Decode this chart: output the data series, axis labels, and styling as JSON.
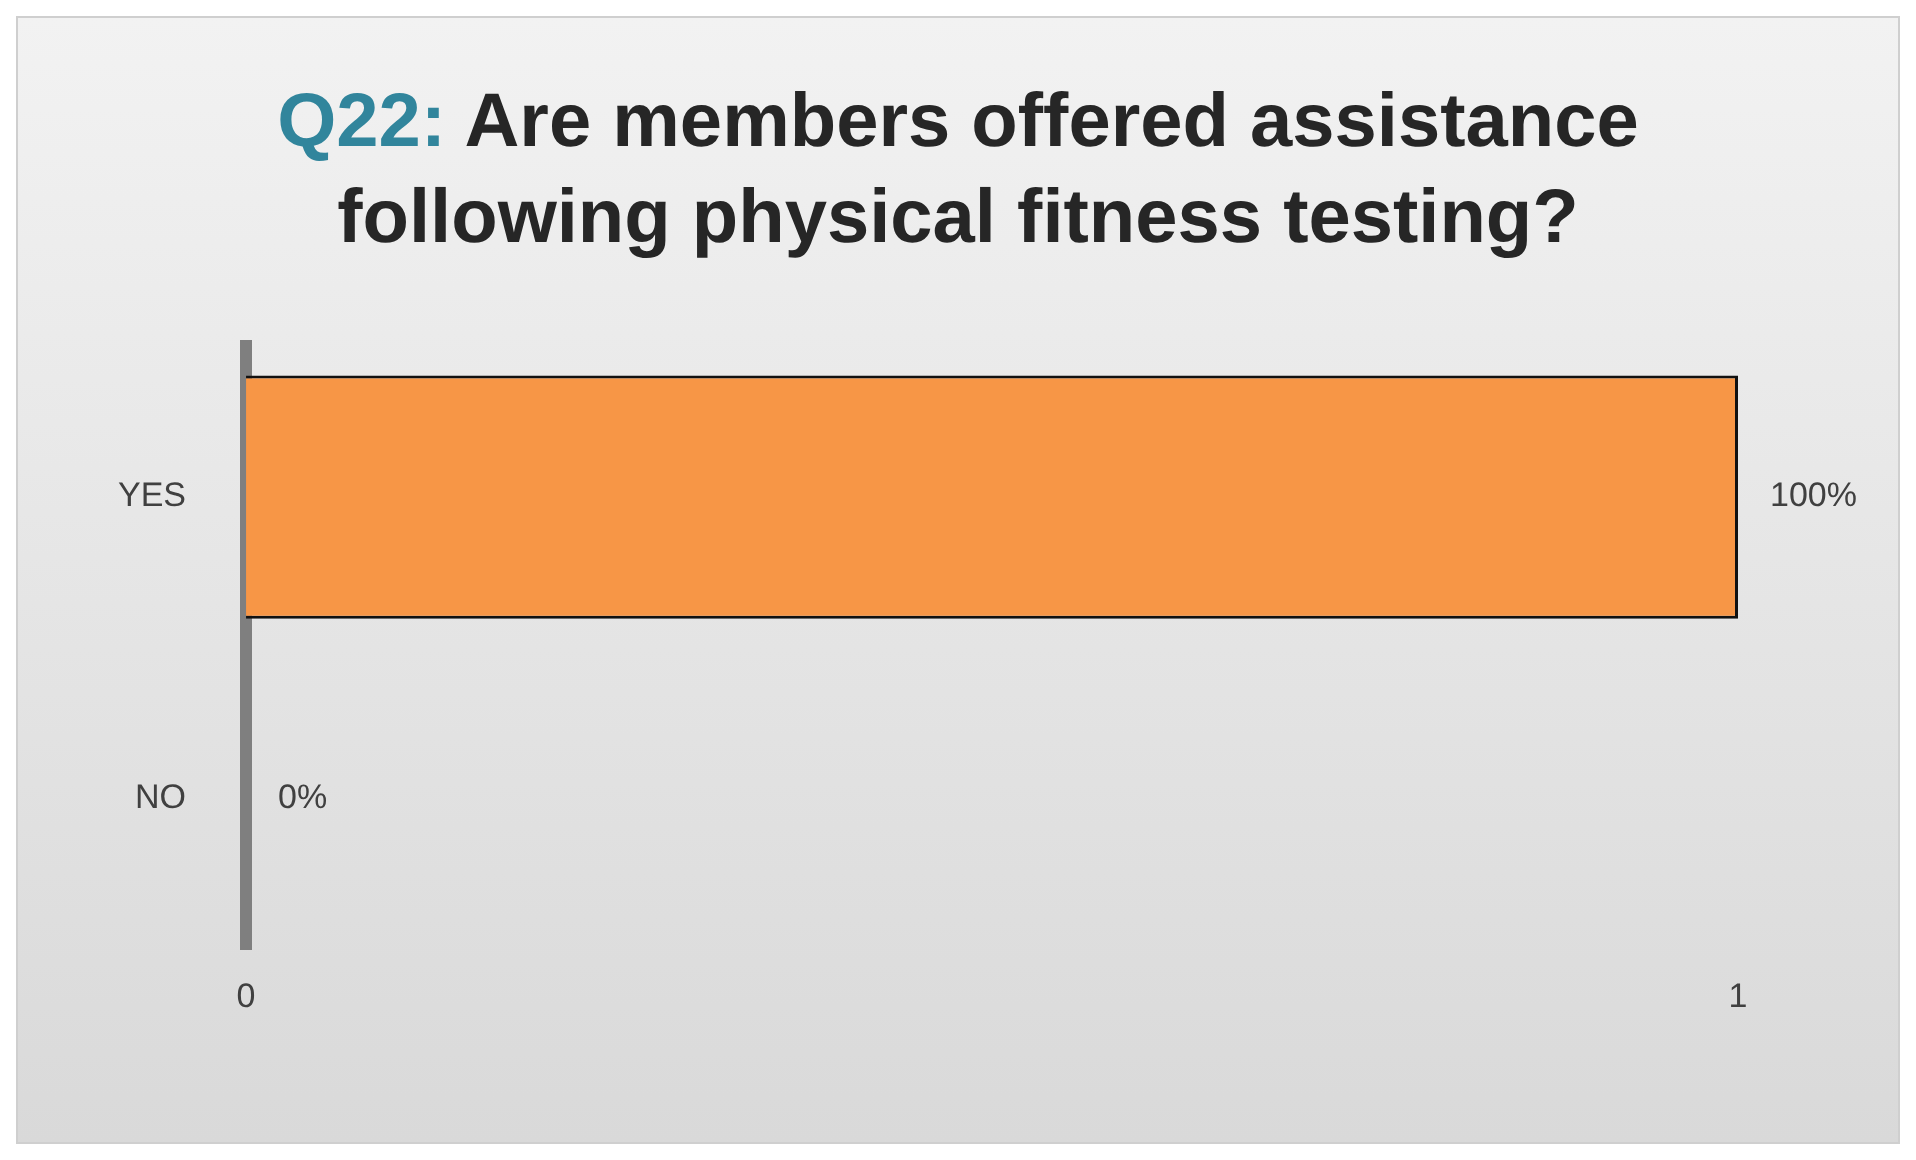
{
  "chart_data": {
    "type": "bar",
    "orientation": "horizontal",
    "title": "Q22: Are members offered assistance following physical fitness testing?",
    "categories": [
      "YES",
      "NO"
    ],
    "values": [
      1,
      0
    ],
    "colors": [
      "#f79646",
      "#2e5f8a"
    ],
    "value_labels": [
      "100%",
      "0%"
    ],
    "xlim": [
      0,
      1
    ],
    "xticks": [
      0,
      1
    ],
    "grid": false,
    "legend": false
  }
}
